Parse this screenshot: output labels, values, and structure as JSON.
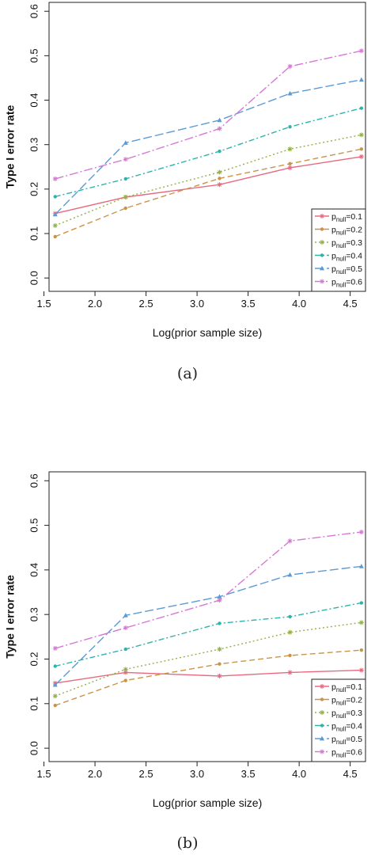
{
  "chart_data": [
    {
      "type": "line",
      "caption": "(a)",
      "xlabel": "Log(prior sample size)",
      "ylabel": "Type I error rate",
      "xlim": [
        1.55,
        4.65
      ],
      "ylim": [
        -0.03,
        0.62
      ],
      "xticks": [
        "1.5",
        "2.0",
        "2.5",
        "3.0",
        "3.5",
        "4.0",
        "4.5"
      ],
      "yticks": [
        "0.0",
        "0.1",
        "0.2",
        "0.3",
        "0.4",
        "0.5",
        "0.6"
      ],
      "x": [
        1.61,
        2.3,
        3.22,
        3.91,
        4.61
      ],
      "legend_position": "bottom-right",
      "series": [
        {
          "name": "p",
          "sub": "null",
          "suffix": "=0.1",
          "color": "#e8697f",
          "dash": "",
          "marker": "star",
          "values": [
            0.145,
            0.182,
            0.21,
            0.248,
            0.273
          ]
        },
        {
          "name": "p",
          "sub": "null",
          "suffix": "=0.2",
          "color": "#c9944a",
          "dash": "7,4",
          "marker": "dot",
          "values": [
            0.093,
            0.157,
            0.224,
            0.257,
            0.29
          ]
        },
        {
          "name": "p",
          "sub": "null",
          "suffix": "=0.3",
          "color": "#93b04a",
          "dash": "2,3",
          "marker": "star",
          "values": [
            0.118,
            0.182,
            0.238,
            0.29,
            0.322
          ]
        },
        {
          "name": "p",
          "sub": "null",
          "suffix": "=0.4",
          "color": "#2fb3ad",
          "dash": "7,3,2,3",
          "marker": "dot",
          "values": [
            0.183,
            0.223,
            0.285,
            0.34,
            0.382
          ]
        },
        {
          "name": "p",
          "sub": "null",
          "suffix": "=0.5",
          "color": "#5b9bd5",
          "dash": "11,4",
          "marker": "triangle",
          "values": [
            0.143,
            0.304,
            0.355,
            0.415,
            0.446
          ]
        },
        {
          "name": "p",
          "sub": "null",
          "suffix": "=0.6",
          "color": "#d777d6",
          "dash": "11,3,2,3",
          "marker": "star",
          "values": [
            0.223,
            0.267,
            0.336,
            0.476,
            0.511
          ]
        }
      ]
    },
    {
      "type": "line",
      "caption": "(b)",
      "xlabel": "Log(prior sample size)",
      "ylabel": "Type I error rate",
      "xlim": [
        1.55,
        4.65
      ],
      "ylim": [
        -0.03,
        0.62
      ],
      "xticks": [
        "1.5",
        "2.0",
        "2.5",
        "3.0",
        "3.5",
        "4.0",
        "4.5"
      ],
      "yticks": [
        "0.0",
        "0.1",
        "0.2",
        "0.3",
        "0.4",
        "0.5",
        "0.6"
      ],
      "x": [
        1.61,
        2.3,
        3.22,
        3.91,
        4.61
      ],
      "legend_position": "bottom-right",
      "series": [
        {
          "name": "p",
          "sub": "null",
          "suffix": "=0.1",
          "color": "#e8697f",
          "dash": "",
          "marker": "star",
          "values": [
            0.146,
            0.17,
            0.162,
            0.17,
            0.175
          ]
        },
        {
          "name": "p",
          "sub": "null",
          "suffix": "=0.2",
          "color": "#c9944a",
          "dash": "7,4",
          "marker": "dot",
          "values": [
            0.096,
            0.152,
            0.189,
            0.208,
            0.22
          ]
        },
        {
          "name": "p",
          "sub": "null",
          "suffix": "=0.3",
          "color": "#93b04a",
          "dash": "2,3",
          "marker": "star",
          "values": [
            0.117,
            0.177,
            0.222,
            0.26,
            0.282
          ]
        },
        {
          "name": "p",
          "sub": "null",
          "suffix": "=0.4",
          "color": "#2fb3ad",
          "dash": "7,3,2,3",
          "marker": "dot",
          "values": [
            0.184,
            0.222,
            0.28,
            0.295,
            0.326
          ]
        },
        {
          "name": "p",
          "sub": "null",
          "suffix": "=0.5",
          "color": "#5b9bd5",
          "dash": "11,4",
          "marker": "triangle",
          "values": [
            0.142,
            0.298,
            0.34,
            0.389,
            0.408
          ]
        },
        {
          "name": "p",
          "sub": "null",
          "suffix": "=0.6",
          "color": "#d777d6",
          "dash": "11,3,2,3",
          "marker": "star",
          "values": [
            0.224,
            0.27,
            0.332,
            0.465,
            0.485
          ]
        }
      ]
    }
  ]
}
